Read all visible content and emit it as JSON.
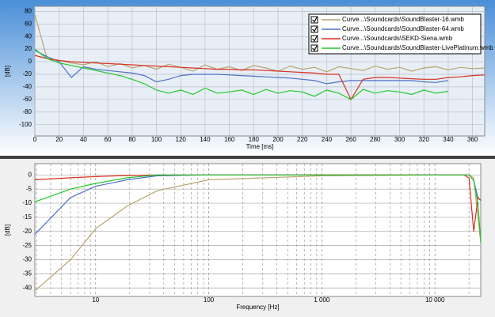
{
  "chart_data": [
    {
      "type": "line",
      "x_label": "Time [ms]",
      "y_label": "[dB]",
      "x": [
        0,
        10,
        20,
        30,
        40,
        50,
        60,
        70,
        80,
        90,
        100,
        110,
        120,
        130,
        140,
        150,
        160,
        170,
        180,
        190,
        200,
        210,
        220,
        230,
        240,
        250,
        260,
        270,
        280,
        290,
        300,
        310,
        320,
        330,
        340,
        350,
        360,
        370
      ],
      "series": [
        {
          "name": "Curve...\\Soundcards\\SoundBlaster-16.wmb",
          "color": "#b8a46e",
          "values": [
            75,
            5,
            2,
            -2,
            -5,
            0,
            -8,
            -3,
            -10,
            -6,
            -12,
            -4,
            -9,
            -15,
            -5,
            -12,
            -8,
            -14,
            -6,
            -10,
            -15,
            -7,
            -12,
            -9,
            -16,
            -8,
            -11,
            -14,
            -7,
            -12,
            -9,
            -15,
            -10,
            -8,
            -13,
            -9,
            -11,
            -10
          ]
        },
        {
          "name": "Curve...\\Soundcards\\SoundBlaster-64.wmb",
          "color": "#5070c8",
          "values": [
            18,
            8,
            0,
            -25,
            -8,
            -12,
            -14,
            -16,
            -18,
            -22,
            -32,
            -28,
            -22,
            -20,
            -20,
            -20,
            -21,
            -22,
            -23,
            -24,
            -25,
            -26,
            -28,
            -30,
            -35,
            -32,
            -30,
            -30,
            -30,
            -30,
            -30,
            -30,
            -32,
            -33,
            -30,
            null,
            null,
            null
          ]
        },
        {
          "name": "Curve...\\Soundcards\\SEKD-Siena.wmb",
          "color": "#d83020",
          "values": [
            10,
            5,
            2,
            0,
            -1,
            -2,
            -3,
            -4,
            -5,
            -6,
            -7,
            -8,
            -9,
            -10,
            -11,
            -12,
            -12,
            -13,
            -13,
            -14,
            -15,
            -16,
            -17,
            -18,
            -20,
            -20,
            -60,
            -28,
            -25,
            -25,
            -26,
            -27,
            -28,
            -28,
            -25,
            -24,
            -22,
            -21
          ]
        },
        {
          "name": "Curve...\\Soundcards\\SoundBlaster-LivePlatinum.wmb",
          "color": "#22c82a",
          "values": [
            20,
            5,
            -2,
            -6,
            -10,
            -14,
            -18,
            -22,
            -28,
            -35,
            -45,
            -50,
            -45,
            -52,
            -42,
            -50,
            -48,
            -45,
            -52,
            -44,
            -50,
            -46,
            -48,
            -55,
            -45,
            -50,
            -60,
            -44,
            -50,
            -46,
            -48,
            -52,
            -45,
            -50,
            -47,
            null,
            null,
            null
          ]
        }
      ],
      "xlim": [
        0,
        370
      ],
      "xticks": [
        0,
        20,
        40,
        60,
        80,
        100,
        120,
        140,
        160,
        180,
        200,
        220,
        240,
        260,
        280,
        300,
        320,
        340,
        360
      ],
      "ylim": [
        -118,
        88
      ],
      "yticks": [
        80,
        60,
        40,
        20,
        0,
        -20,
        -40,
        -60,
        -80,
        -100
      ],
      "grid": true,
      "legend": "upper right"
    },
    {
      "type": "line",
      "x_label": "Frequency [Hz]",
      "y_label": "[dB]",
      "xscale": "log",
      "x": [
        2.9,
        6,
        10,
        19,
        35,
        100,
        1000,
        10000,
        18000,
        20000,
        22000,
        24000,
        25400
      ],
      "series": [
        {
          "name": "Curve...\\Soundcards\\SoundBlaster-16.wmb",
          "color": "#b8a46e",
          "values": [
            -41,
            -30,
            -19,
            -11,
            -5.6,
            -1.7,
            -0.3,
            0,
            0,
            0,
            -1,
            -15,
            -24
          ]
        },
        {
          "name": "Curve...\\Soundcards\\SoundBlaster-64.wmb",
          "color": "#5070c8",
          "values": [
            -21,
            -8,
            -4,
            -1.7,
            -0.3,
            0,
            0,
            0,
            0,
            0,
            -2,
            -8,
            -9
          ]
        },
        {
          "name": "Curve...\\Soundcards\\SEKD-Siena.wmb",
          "color": "#d83020",
          "values": [
            -1.7,
            -1,
            -0.6,
            -0.2,
            0,
            0,
            0,
            0,
            0,
            -1,
            -20,
            -8,
            -9
          ]
        },
        {
          "name": "Curve...\\Soundcards\\SoundBlaster-LivePlatinum.wmb",
          "color": "#22c82a",
          "values": [
            -9.5,
            -5,
            -3,
            -1,
            0,
            0,
            0,
            0,
            0,
            0,
            -2,
            -10,
            -24
          ]
        }
      ],
      "xlim": [
        2.9,
        25400
      ],
      "xticks": [
        10,
        100,
        {
          "value": 1000,
          "label": "1 000"
        },
        {
          "value": 10000,
          "label": "10 000"
        }
      ],
      "x_minor_ticks": [
        3,
        4,
        5,
        6,
        7,
        8,
        9,
        20,
        30,
        40,
        50,
        60,
        70,
        80,
        90,
        200,
        300,
        400,
        500,
        600,
        700,
        800,
        900,
        2000,
        3000,
        4000,
        5000,
        6000,
        7000,
        8000,
        9000,
        20000
      ],
      "ylim": [
        -43,
        4
      ],
      "yticks": [
        0,
        -5,
        -10,
        -15,
        -20,
        -25,
        -30,
        -35,
        -40
      ],
      "grid": true
    }
  ]
}
